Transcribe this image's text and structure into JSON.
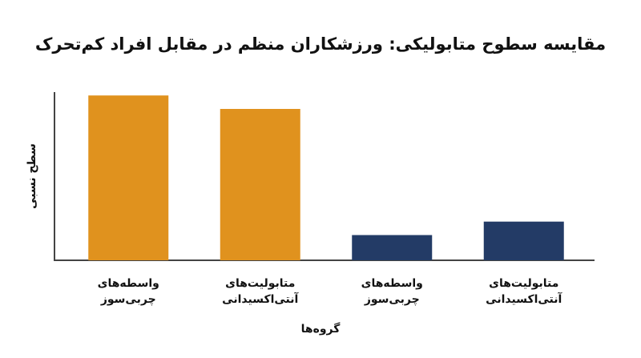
{
  "chart_data": {
    "type": "bar",
    "title": "مقایسه سطوح متابولیکی: ورزشکاران منظم در مقابل افراد کم‌تحرک",
    "x_label": "گروه‌ها",
    "y_label": "سطح نسبی",
    "categories": [
      "واسطه‌های\nچربی‌سوز",
      "متابولیت‌های\nآنتی‌اکسیدانی",
      "واسطه‌های\nچربی‌سوز",
      "متابولیت‌های\nآنتی‌اکسیدانی"
    ],
    "values": [
      98,
      90,
      15,
      23
    ],
    "colors": [
      "#e0921e",
      "#e0921e",
      "#233b66",
      "#233b66"
    ],
    "ylim": [
      0,
      100
    ]
  }
}
